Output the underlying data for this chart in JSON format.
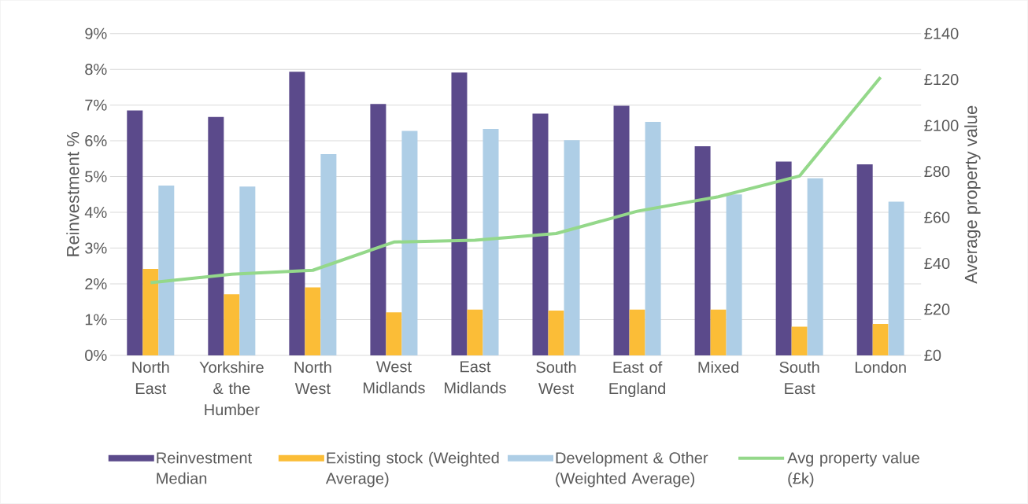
{
  "chart_data": {
    "type": "bar",
    "categories": [
      "North East",
      "Yorkshire & the Humber",
      "North West",
      "West Midlands",
      "East Midlands",
      "South West",
      "East of England",
      "Mixed",
      "South East",
      "London"
    ],
    "ylabel": "Reinvestment %",
    "y2label": "Average property value",
    "series": [
      {
        "name": "Reinvestment Median",
        "color": "#5b4a8b",
        "values": [
          6.85,
          6.67,
          7.93,
          7.03,
          7.91,
          6.76,
          6.98,
          5.85,
          5.42,
          5.34
        ]
      },
      {
        "name": "Existing stock (Weighted Average)",
        "color": "#fbbd37",
        "values": [
          2.42,
          1.71,
          1.9,
          1.2,
          1.28,
          1.25,
          1.28,
          1.28,
          0.8,
          0.88
        ]
      },
      {
        "name": "Development & Other (Weighted Average)",
        "color": "#aecee6",
        "values": [
          4.75,
          4.72,
          5.63,
          6.28,
          6.33,
          6.02,
          6.53,
          4.5,
          4.95,
          4.3
        ]
      },
      {
        "name": "Avg property value (£k)",
        "color": "#94d88a",
        "type": "line",
        "axis": "y2",
        "values": [
          31.6,
          35.3,
          37,
          49.3,
          50.1,
          53,
          62.7,
          69,
          78,
          121
        ]
      }
    ],
    "ylim": [
      0,
      9
    ],
    "yticks": [
      {
        "value": 0,
        "label": "0%"
      },
      {
        "value": 1,
        "label": "1%"
      },
      {
        "value": 2,
        "label": "2%"
      },
      {
        "value": 3,
        "label": "3%"
      },
      {
        "value": 4,
        "label": "4%"
      },
      {
        "value": 5,
        "label": "5%"
      },
      {
        "value": 6,
        "label": "6%"
      },
      {
        "value": 7,
        "label": "7%"
      },
      {
        "value": 8,
        "label": "8%"
      },
      {
        "value": 9,
        "label": "9%"
      }
    ],
    "y2lim": [
      0,
      140
    ],
    "y2ticks": [
      {
        "value": 0,
        "label": "£0"
      },
      {
        "value": 20,
        "label": "£20"
      },
      {
        "value": 40,
        "label": "£40"
      },
      {
        "value": 60,
        "label": "£60"
      },
      {
        "value": 80,
        "label": "£80"
      },
      {
        "value": 100,
        "label": "£100"
      },
      {
        "value": 120,
        "label": "£120"
      },
      {
        "value": 140,
        "label": "£140"
      }
    ],
    "grid": "y",
    "legend": "bottom",
    "marker": "none",
    "line_style": "solid"
  }
}
